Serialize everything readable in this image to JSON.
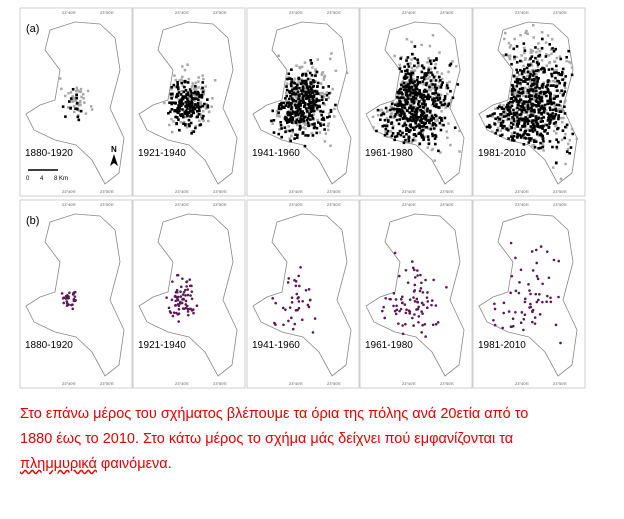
{
  "rows": [
    {
      "label": "(a)",
      "panels": [
        "1880-1920",
        "1921-1940",
        "1941-1960",
        "1961-1980",
        "1981-2010"
      ]
    },
    {
      "label": "(b)",
      "panels": [
        "1880-1920",
        "1921-1940",
        "1941-1960",
        "1961-1980",
        "1981-2010"
      ]
    }
  ],
  "north": "N",
  "scale_bar": {
    "labels": [
      "0",
      "4",
      "8 Km"
    ]
  },
  "lon_labels": [
    "23°40'E",
    "23°50'E"
  ],
  "caption": {
    "lines": [
      "Στο επάνω μέρος του σχήματος βλέπουμε τα όρια της πόλης ανά 20ετία από το",
      "1880 έως το 2010. Στο κάτω μέρος το σχήμα μάς δείχνει πού εμφανίζονται τα"
    ],
    "last_line": [
      "πλημμυρικά",
      " φαινόμενα."
    ]
  }
}
